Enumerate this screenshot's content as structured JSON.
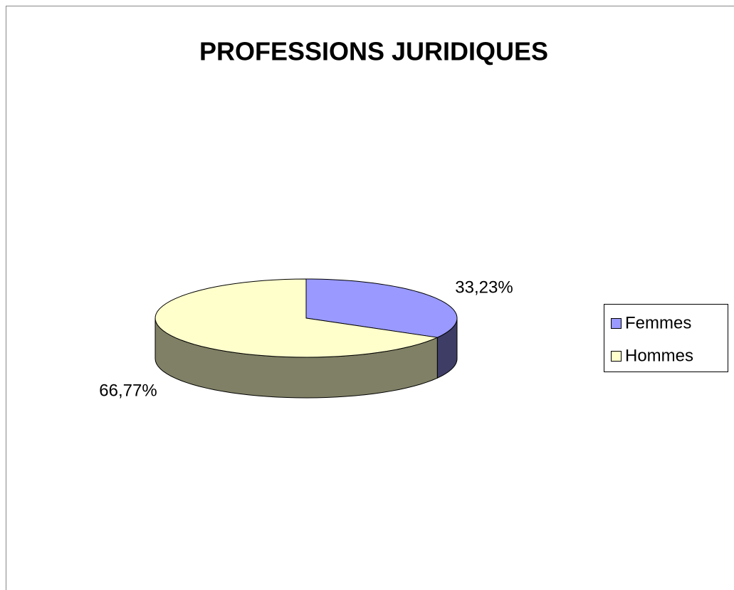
{
  "chart_data": {
    "type": "pie",
    "title": "PROFESSIONS JURIDIQUES",
    "categories": [
      "Femmes",
      "Hommes"
    ],
    "values": [
      33.23,
      66.77
    ],
    "value_labels": [
      "33,23%",
      "66,77%"
    ],
    "colors": [
      "#9999ff",
      "#ffffcc"
    ],
    "legend": "right"
  }
}
